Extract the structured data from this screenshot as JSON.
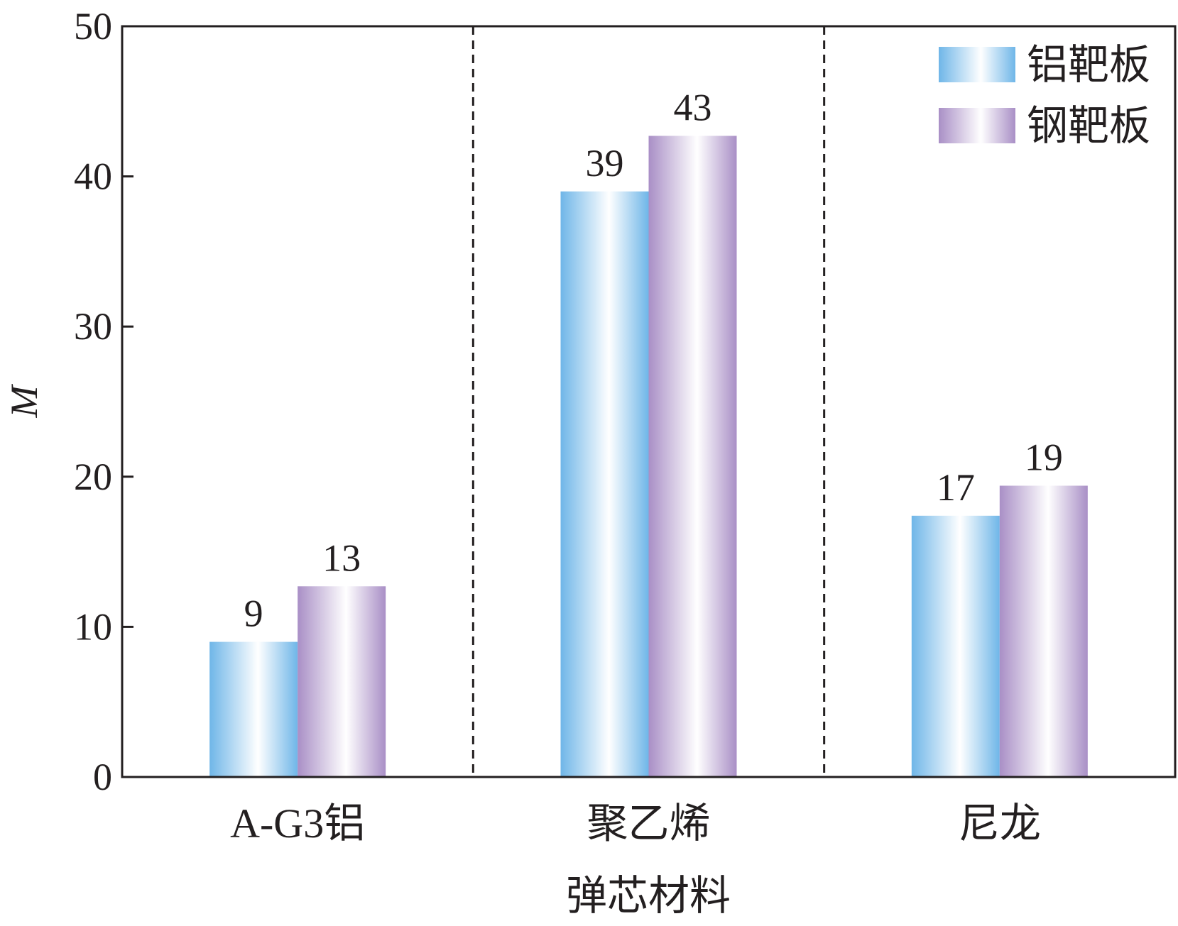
{
  "chart_data": {
    "type": "bar",
    "categories": [
      "A-G3铝",
      "聚乙烯",
      "尼龙"
    ],
    "series": [
      {
        "name": "铝靶板",
        "values": [
          9,
          39,
          17.4
        ],
        "value_labels": [
          "9",
          "39",
          "17"
        ],
        "color": "#6fb6e8"
      },
      {
        "name": "钢靶板",
        "values": [
          12.7,
          42.7,
          19.4
        ],
        "value_labels": [
          "13",
          "43",
          "19"
        ],
        "color": "#a98fc6"
      }
    ],
    "xlabel": "弹芯材料",
    "ylabel": "M",
    "ylim": [
      0,
      50
    ],
    "yticks": [
      "0",
      "10",
      "20",
      "30",
      "40",
      "50"
    ],
    "grid": false,
    "category_separators": "dashed",
    "legend": "top-right"
  }
}
